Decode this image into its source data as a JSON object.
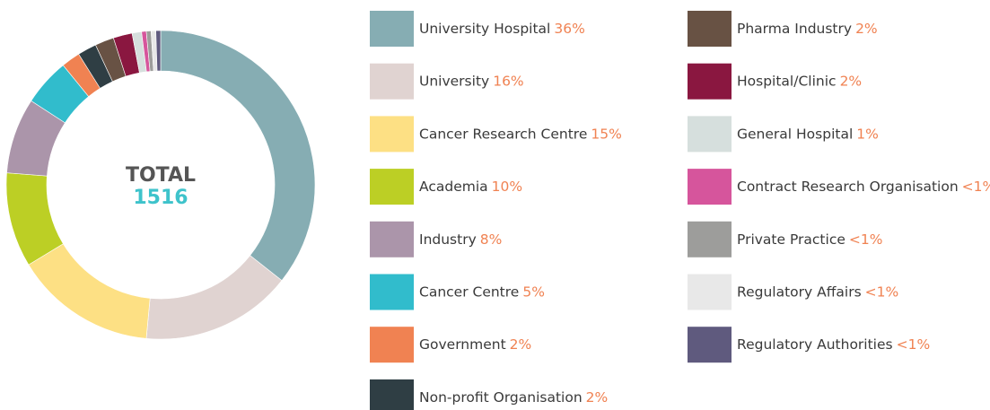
{
  "chart_data": {
    "type": "donut",
    "center_label": "TOTAL",
    "total": 1516,
    "categories": [
      "University Hospital",
      "University",
      "Cancer Research Centre",
      "Academia",
      "Industry",
      "Cancer Centre",
      "Government",
      "Non-profit Organisation",
      "Pharma Industry",
      "Hospital/Clinic",
      "General Hospital",
      "Contract Research Organisation",
      "Private Practice",
      "Regulatory Affairs",
      "Regulatory Authorities"
    ],
    "values": [
      36,
      16,
      15,
      10,
      8,
      5,
      2,
      2,
      2,
      2,
      1,
      0.5,
      0.5,
      0.5,
      0.5
    ],
    "value_labels": [
      "36%",
      "16%",
      "15%",
      "10%",
      "8%",
      "5%",
      "2%",
      "2%",
      "2%",
      "2%",
      "1%",
      "<1%",
      "<1%",
      "<1%",
      "<1%"
    ],
    "colors": [
      "#86adb3",
      "#e0d3d1",
      "#fde084",
      "#bccf25",
      "#ab95aa",
      "#31bccc",
      "#f08252",
      "#2f3e44",
      "#685244",
      "#8a1740",
      "#d6dfdd",
      "#d6559c",
      "#9d9d9b",
      "#e8e8e8",
      "#5f5a7e"
    ]
  }
}
